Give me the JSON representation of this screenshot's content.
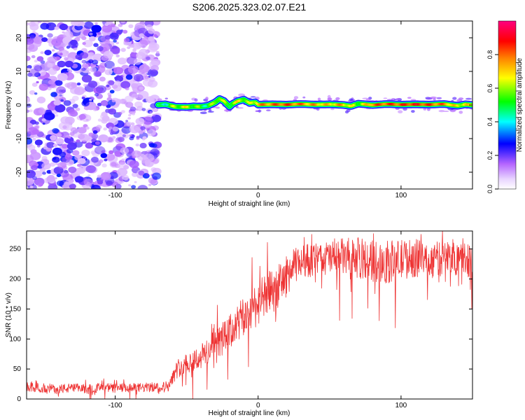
{
  "title": "S206.2025.323.02.07.E21",
  "chart_data": [
    {
      "type": "heatmap",
      "xlabel": "Height of straight line (km)",
      "ylabel": "Frequency (Hz)",
      "xlim": [
        -162,
        150
      ],
      "ylim": [
        -25,
        25
      ],
      "x_ticks": [
        -100,
        0,
        100
      ],
      "y_ticks": [
        -20,
        -10,
        0,
        10,
        20
      ],
      "noise_region_x": [
        -162,
        -70
      ],
      "signal_region_x": [
        -70,
        150
      ],
      "ridge": {
        "x": [
          -72,
          -65,
          -58,
          -50,
          -45,
          -40,
          -35,
          -30,
          -27,
          -24,
          -20,
          -18,
          -14,
          -10,
          -6,
          -2,
          0,
          10,
          20,
          30,
          40,
          50,
          60,
          65,
          70,
          75,
          80,
          90,
          100,
          110,
          120,
          130,
          135,
          140,
          145,
          150
        ],
        "y": [
          0,
          0.2,
          -0.5,
          -0.6,
          -0.4,
          -0.5,
          -0.2,
          0.8,
          1.8,
          1.2,
          -0.5,
          0.3,
          1.2,
          1.6,
          0.6,
          0.8,
          0.1,
          0.2,
          0.1,
          0.3,
          0.1,
          0.2,
          0.0,
          -0.3,
          0.4,
          0.2,
          0.0,
          0.3,
          0.1,
          0.2,
          0.1,
          0.3,
          0.0,
          -0.2,
          0.2,
          0.0
        ],
        "amplitude": [
          0.35,
          0.4,
          0.55,
          0.6,
          0.55,
          0.5,
          0.45,
          0.55,
          0.6,
          0.55,
          0.5,
          0.55,
          0.6,
          0.6,
          0.55,
          0.6,
          0.7,
          0.75,
          0.8,
          0.75,
          0.7,
          0.65,
          0.7,
          0.6,
          0.55,
          0.6,
          0.75,
          0.8,
          0.8,
          0.85,
          0.8,
          0.75,
          0.7,
          0.6,
          0.65,
          0.6
        ]
      },
      "colorbar": {
        "label": "Normalized spectral amplitude",
        "ticks": [
          "0.0",
          "0.2",
          "0.4",
          "0.6",
          "0.8"
        ],
        "range": [
          0,
          1
        ],
        "colors": [
          "#ffffff",
          "#b464ff",
          "#0000ff",
          "#00ffff",
          "#00ff00",
          "#ffff00",
          "#ff8000",
          "#ff0000",
          "#ff0080"
        ]
      }
    },
    {
      "type": "line",
      "xlabel": "Height of straight line (km)",
      "ylabel": "SNR (10 * v/v)",
      "xlim": [
        -162,
        150
      ],
      "ylim": [
        0,
        280
      ],
      "x_ticks": [
        -100,
        0,
        100
      ],
      "y_ticks": [
        0,
        50,
        100,
        150,
        200,
        250
      ],
      "series": [
        {
          "name": "SNR",
          "color": "#ee3333",
          "x": [
            -162,
            -150,
            -140,
            -130,
            -120,
            -110,
            -100,
            -90,
            -80,
            -70,
            -62,
            -58,
            -55,
            -50,
            -45,
            -40,
            -35,
            -30,
            -25,
            -20,
            -15,
            -10,
            -5,
            0,
            5,
            10,
            15,
            20,
            25,
            30,
            40,
            50,
            60,
            70,
            80,
            90,
            100,
            110,
            120,
            130,
            140,
            150
          ],
          "values": [
            20,
            18,
            17,
            18,
            17,
            19,
            18,
            18,
            19,
            20,
            22,
            45,
            55,
            60,
            65,
            70,
            80,
            90,
            100,
            110,
            125,
            135,
            150,
            160,
            170,
            180,
            190,
            205,
            220,
            230,
            232,
            235,
            237,
            235,
            230,
            228,
            232,
            235,
            230,
            235,
            238,
            232
          ],
          "noise_amplitude": [
            8,
            8,
            8,
            8,
            8,
            8,
            8,
            8,
            8,
            8,
            9,
            14,
            16,
            18,
            20,
            22,
            24,
            26,
            28,
            30,
            32,
            34,
            36,
            38,
            38,
            38,
            36,
            34,
            30,
            28,
            28,
            30,
            32,
            34,
            36,
            36,
            34,
            32,
            30,
            30,
            32,
            30
          ]
        }
      ]
    }
  ]
}
